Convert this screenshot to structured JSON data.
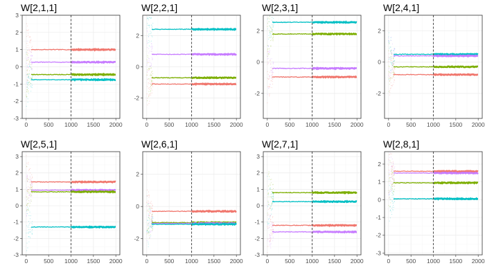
{
  "colors": {
    "red": "#f0766d",
    "olive": "#7cae00",
    "cyan": "#00bfc4",
    "purple": "#c77cff"
  },
  "chart_data": [
    {
      "type": "line",
      "title": "W[2,1,1]",
      "xlim": [
        0,
        2000
      ],
      "ylim": [
        -3,
        3
      ],
      "xticks": [
        0,
        500,
        1000,
        1500,
        2000
      ],
      "yticks": [
        -3,
        -2,
        -1,
        0,
        1,
        2,
        3
      ],
      "vline_x": 1000,
      "series": [
        {
          "color": "red",
          "value": 1.0
        },
        {
          "color": "purple",
          "value": 0.27
        },
        {
          "color": "olive",
          "value": -0.45
        },
        {
          "color": "cyan",
          "value": -0.75
        }
      ]
    },
    {
      "type": "line",
      "title": "W[2,2,1]",
      "xlim": [
        0,
        2000
      ],
      "ylim": [
        -3.3,
        3.3
      ],
      "xticks": [
        0,
        500,
        1000,
        1500,
        2000
      ],
      "yticks": [
        -2,
        0,
        2
      ],
      "vline_x": 1000,
      "series": [
        {
          "color": "cyan",
          "value": 2.4
        },
        {
          "color": "purple",
          "value": 0.8
        },
        {
          "color": "olive",
          "value": -0.7
        },
        {
          "color": "red",
          "value": -1.1
        }
      ]
    },
    {
      "type": "line",
      "title": "W[2,3,1]",
      "xlim": [
        0,
        2000
      ],
      "ylim": [
        -3.6,
        3.0
      ],
      "xticks": [
        0,
        500,
        1000,
        1500,
        2000
      ],
      "yticks": [
        -2,
        0,
        2
      ],
      "vline_x": 1000,
      "series": [
        {
          "color": "cyan",
          "value": 2.55
        },
        {
          "color": "olive",
          "value": 1.8
        },
        {
          "color": "purple",
          "value": -0.4
        },
        {
          "color": "red",
          "value": -0.95
        }
      ]
    },
    {
      "type": "line",
      "title": "W[2,4,1]",
      "xlim": [
        0,
        2000
      ],
      "ylim": [
        -3.6,
        3.0
      ],
      "xticks": [
        0,
        500,
        1000,
        1500,
        2000
      ],
      "yticks": [
        -2,
        0,
        2
      ],
      "vline_x": 1000,
      "series": [
        {
          "color": "cyan",
          "value": 0.5
        },
        {
          "color": "purple",
          "value": 0.4
        },
        {
          "color": "olive",
          "value": -0.3
        },
        {
          "color": "red",
          "value": -0.8
        }
      ]
    },
    {
      "type": "line",
      "title": "W[2,5,1]",
      "xlim": [
        0,
        2000
      ],
      "ylim": [
        -3,
        3.3
      ],
      "xticks": [
        0,
        500,
        1000,
        1500,
        2000
      ],
      "yticks": [
        -3,
        -2,
        -1,
        0,
        1,
        2,
        3
      ],
      "vline_x": 1000,
      "series": [
        {
          "color": "red",
          "value": 1.45
        },
        {
          "color": "purple",
          "value": 0.95
        },
        {
          "color": "olive",
          "value": 0.85
        },
        {
          "color": "cyan",
          "value": -1.3
        }
      ]
    },
    {
      "type": "line",
      "title": "W[2,6,1]",
      "xlim": [
        0,
        2000
      ],
      "ylim": [
        -3,
        3.4
      ],
      "xticks": [
        0,
        500,
        1000,
        1500,
        2000
      ],
      "yticks": [
        -2,
        0,
        2
      ],
      "vline_x": 1000,
      "series": [
        {
          "color": "red",
          "value": -0.3
        },
        {
          "color": "olive",
          "value": -1.0
        },
        {
          "color": "purple",
          "value": -1.05
        },
        {
          "color": "cyan",
          "value": -1.1
        }
      ]
    },
    {
      "type": "line",
      "title": "W[2,7,1]",
      "xlim": [
        0,
        2000
      ],
      "ylim": [
        -3,
        3.3
      ],
      "xticks": [
        0,
        500,
        1000,
        1500,
        2000
      ],
      "yticks": [
        -3,
        -2,
        -1,
        0,
        1,
        2,
        3
      ],
      "vline_x": 1000,
      "series": [
        {
          "color": "olive",
          "value": 0.8
        },
        {
          "color": "cyan",
          "value": 0.25
        },
        {
          "color": "red",
          "value": -1.2
        },
        {
          "color": "purple",
          "value": -1.6
        }
      ]
    },
    {
      "type": "line",
      "title": "W[2,8,1]",
      "xlim": [
        0,
        2000
      ],
      "ylim": [
        -3.1,
        2.7
      ],
      "xticks": [
        0,
        500,
        1000,
        1500,
        2000
      ],
      "yticks": [
        -3,
        -2,
        -1,
        0,
        1,
        2
      ],
      "vline_x": 1000,
      "series": [
        {
          "color": "red",
          "value": 1.6
        },
        {
          "color": "purple",
          "value": 1.5
        },
        {
          "color": "olive",
          "value": 0.95
        },
        {
          "color": "cyan",
          "value": 0.05
        }
      ]
    }
  ]
}
